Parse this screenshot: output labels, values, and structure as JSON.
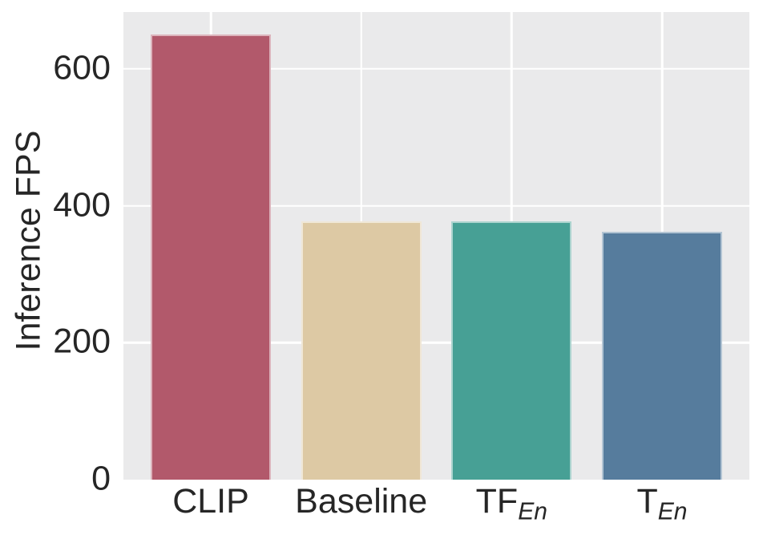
{
  "chart_data": {
    "type": "bar",
    "title": "",
    "xlabel": "",
    "ylabel": "Inference FPS",
    "categories": [
      {
        "label": "CLIP",
        "sub": ""
      },
      {
        "label": "Baseline",
        "sub": ""
      },
      {
        "label": "TF",
        "sub": "En"
      },
      {
        "label": "T",
        "sub": "En"
      }
    ],
    "values": [
      650,
      377,
      377,
      362
    ],
    "bar_colors": [
      "#b2596b",
      "#ddc9a4",
      "#47a095",
      "#567c9d"
    ],
    "yticks": [
      0,
      200,
      400,
      600
    ],
    "ylim": [
      0,
      683
    ],
    "grid": true,
    "legend": "none",
    "plot_bg_color": "#eaeaeb",
    "grid_color": "#ffffff",
    "text_color": "#262626"
  }
}
